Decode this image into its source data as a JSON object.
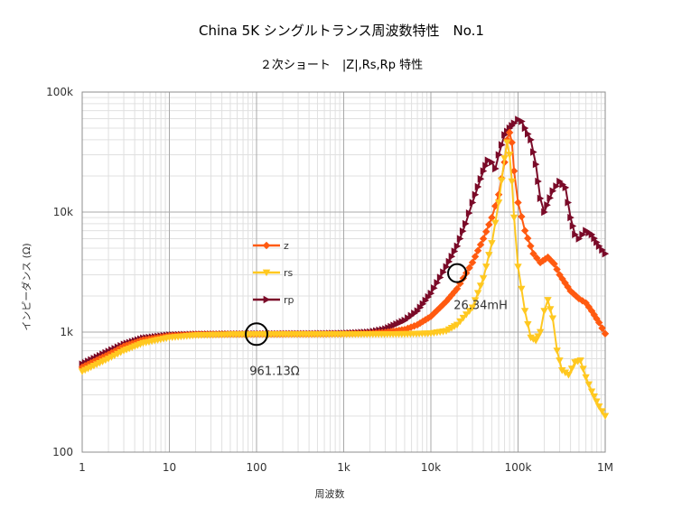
{
  "chart_data": {
    "type": "line",
    "title": "China 5K シングルトランス周波数特性　No.1",
    "subtitle": "２次ショート　|Z|,Rs,Rp 特性",
    "xlabel": "周波数",
    "ylabel": "インピーダンス (Ω)",
    "x_scale": "log",
    "y_scale": "log",
    "xlim": [
      1,
      1000000
    ],
    "ylim": [
      100,
      100000
    ],
    "grid": true,
    "legend_position": "left-middle",
    "x_ticks": [
      {
        "v": 1,
        "label": "1"
      },
      {
        "v": 10,
        "label": "10"
      },
      {
        "v": 100,
        "label": "100"
      },
      {
        "v": 1000,
        "label": "1k"
      },
      {
        "v": 10000,
        "label": "10k"
      },
      {
        "v": 100000,
        "label": "100k"
      },
      {
        "v": 1000000,
        "label": "1M"
      }
    ],
    "y_ticks": [
      {
        "v": 100,
        "label": "100"
      },
      {
        "v": 1000,
        "label": "1k"
      },
      {
        "v": 10000,
        "label": "10k"
      },
      {
        "v": 100000,
        "label": "100k"
      }
    ],
    "series": [
      {
        "name": "z",
        "color": "#ff5a10",
        "marker": "diamond",
        "points": [
          [
            1,
            510
          ],
          [
            2,
            650
          ],
          [
            3,
            760
          ],
          [
            5,
            860
          ],
          [
            10,
            930
          ],
          [
            20,
            955
          ],
          [
            50,
            960
          ],
          [
            100,
            961
          ],
          [
            200,
            962
          ],
          [
            500,
            963
          ],
          [
            1000,
            966
          ],
          [
            2000,
            975
          ],
          [
            3000,
            995
          ],
          [
            5000,
            1050
          ],
          [
            7000,
            1150
          ],
          [
            10000,
            1350
          ],
          [
            15000,
            1800
          ],
          [
            20000,
            2300
          ],
          [
            30000,
            3800
          ],
          [
            40000,
            6000
          ],
          [
            50000,
            9000
          ],
          [
            60000,
            14000
          ],
          [
            70000,
            26000
          ],
          [
            75000,
            40000
          ],
          [
            80000,
            46000
          ],
          [
            85000,
            38000
          ],
          [
            90000,
            22000
          ],
          [
            100000,
            12000
          ],
          [
            120000,
            7000
          ],
          [
            150000,
            4500
          ],
          [
            180000,
            3800
          ],
          [
            220000,
            4200
          ],
          [
            260000,
            3700
          ],
          [
            300000,
            3000
          ],
          [
            400000,
            2200
          ],
          [
            500000,
            1900
          ],
          [
            600000,
            1750
          ],
          [
            700000,
            1500
          ],
          [
            850000,
            1200
          ],
          [
            1000000,
            970
          ]
        ]
      },
      {
        "name": "rs",
        "color": "#ffc820",
        "marker": "triangle-down",
        "points": [
          [
            1,
            470
          ],
          [
            2,
            600
          ],
          [
            3,
            700
          ],
          [
            5,
            810
          ],
          [
            10,
            900
          ],
          [
            20,
            940
          ],
          [
            50,
            955
          ],
          [
            100,
            958
          ],
          [
            200,
            958
          ],
          [
            500,
            958
          ],
          [
            1000,
            958
          ],
          [
            2000,
            958
          ],
          [
            5000,
            962
          ],
          [
            10000,
            975
          ],
          [
            15000,
            1020
          ],
          [
            20000,
            1150
          ],
          [
            30000,
            1600
          ],
          [
            40000,
            2800
          ],
          [
            50000,
            5500
          ],
          [
            60000,
            12000
          ],
          [
            70000,
            28000
          ],
          [
            75000,
            38000
          ],
          [
            80000,
            30000
          ],
          [
            85000,
            18000
          ],
          [
            90000,
            9000
          ],
          [
            100000,
            3500
          ],
          [
            120000,
            1500
          ],
          [
            140000,
            900
          ],
          [
            160000,
            850
          ],
          [
            180000,
            1000
          ],
          [
            200000,
            1500
          ],
          [
            220000,
            1850
          ],
          [
            250000,
            1300
          ],
          [
            280000,
            700
          ],
          [
            320000,
            480
          ],
          [
            380000,
            440
          ],
          [
            450000,
            560
          ],
          [
            520000,
            580
          ],
          [
            600000,
            420
          ],
          [
            700000,
            320
          ],
          [
            850000,
            240
          ],
          [
            1000000,
            200
          ]
        ]
      },
      {
        "name": "rp",
        "color": "#7a0a28",
        "marker": "triangle-right",
        "points": [
          [
            1,
            540
          ],
          [
            2,
            690
          ],
          [
            3,
            790
          ],
          [
            5,
            890
          ],
          [
            10,
            945
          ],
          [
            20,
            960
          ],
          [
            50,
            965
          ],
          [
            100,
            966
          ],
          [
            200,
            968
          ],
          [
            500,
            970
          ],
          [
            1000,
            975
          ],
          [
            2000,
            1000
          ],
          [
            3000,
            1060
          ],
          [
            5000,
            1250
          ],
          [
            7000,
            1500
          ],
          [
            10000,
            2100
          ],
          [
            15000,
            3500
          ],
          [
            20000,
            5200
          ],
          [
            25000,
            8000
          ],
          [
            30000,
            12000
          ],
          [
            40000,
            22000
          ],
          [
            45000,
            27000
          ],
          [
            50000,
            26000
          ],
          [
            55000,
            23000
          ],
          [
            60000,
            30000
          ],
          [
            70000,
            44000
          ],
          [
            80000,
            50000
          ],
          [
            90000,
            55000
          ],
          [
            100000,
            59000
          ],
          [
            110000,
            57000
          ],
          [
            120000,
            50000
          ],
          [
            140000,
            40000
          ],
          [
            160000,
            25000
          ],
          [
            180000,
            13000
          ],
          [
            200000,
            10000
          ],
          [
            250000,
            15000
          ],
          [
            300000,
            18000
          ],
          [
            350000,
            16000
          ],
          [
            400000,
            9000
          ],
          [
            450000,
            6500
          ],
          [
            500000,
            6000
          ],
          [
            600000,
            7000
          ],
          [
            700000,
            6500
          ],
          [
            850000,
            5200
          ],
          [
            1000000,
            4500
          ]
        ]
      }
    ],
    "annotations": [
      {
        "text": "961.13Ω",
        "x": 100,
        "y": 961
      },
      {
        "text": "26.34mH",
        "x": 20000,
        "y": 3100
      }
    ]
  }
}
